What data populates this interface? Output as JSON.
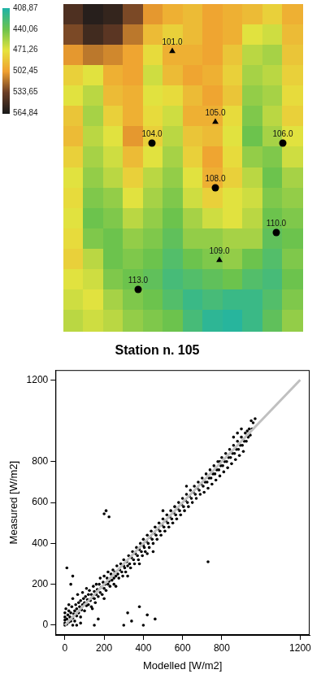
{
  "chart_data": [
    {
      "type": "map",
      "xlim": [
        0,
        294
      ],
      "ylim": [
        0,
        402
      ],
      "tick_labels": false,
      "grid": false,
      "color": "#000000",
      "elevation": {
        "cells": [
          [
            545,
            560,
            555,
            530,
            505,
            495,
            490,
            500,
            495,
            490,
            480,
            495
          ],
          [
            530,
            550,
            540,
            515,
            490,
            480,
            490,
            500,
            495,
            470,
            465,
            490
          ],
          [
            505,
            515,
            510,
            500,
            475,
            495,
            495,
            500,
            485,
            460,
            455,
            485
          ],
          [
            480,
            470,
            495,
            500,
            465,
            490,
            500,
            495,
            480,
            455,
            460,
            480
          ],
          [
            470,
            460,
            490,
            495,
            470,
            475,
            490,
            500,
            485,
            450,
            455,
            475
          ],
          [
            485,
            455,
            480,
            495,
            475,
            465,
            495,
            495,
            475,
            445,
            460,
            480
          ],
          [
            490,
            460,
            470,
            505,
            480,
            460,
            485,
            490,
            470,
            440,
            455,
            470
          ],
          [
            480,
            455,
            465,
            490,
            470,
            455,
            480,
            500,
            475,
            450,
            445,
            465
          ],
          [
            470,
            450,
            460,
            480,
            460,
            450,
            470,
            495,
            480,
            460,
            440,
            455
          ],
          [
            475,
            445,
            450,
            470,
            455,
            445,
            465,
            480,
            470,
            465,
            445,
            450
          ],
          [
            470,
            440,
            445,
            460,
            450,
            440,
            455,
            465,
            470,
            460,
            440,
            445
          ],
          [
            475,
            445,
            440,
            450,
            445,
            435,
            450,
            450,
            455,
            455,
            435,
            440
          ],
          [
            480,
            460,
            440,
            445,
            440,
            430,
            440,
            445,
            450,
            440,
            430,
            445
          ],
          [
            470,
            465,
            445,
            440,
            435,
            425,
            430,
            435,
            440,
            430,
            425,
            440
          ],
          [
            465,
            470,
            455,
            445,
            440,
            430,
            420,
            425,
            420,
            420,
            430,
            445
          ],
          [
            460,
            465,
            460,
            450,
            445,
            440,
            425,
            415,
            412,
            420,
            435,
            450
          ]
        ],
        "color_bar": {
          "range": [
            408.87,
            564.84
          ],
          "ticks": [
            {
              "value": 408.87,
              "label": "408,87"
            },
            {
              "value": 440.06,
              "label": "440,06"
            },
            {
              "value": 471.26,
              "label": "471,26"
            },
            {
              "value": 502.45,
              "label": "502,45"
            },
            {
              "value": 533.65,
              "label": "533,65"
            },
            {
              "value": 564.84,
              "label": "564,84"
            }
          ],
          "colors": [
            "#1fb3a6",
            "#6cc34d",
            "#e6e33e",
            "#f0a030",
            "#6b3d25",
            "#1a1a1a"
          ]
        }
      },
      "stations": [
        {
          "label": "101.0",
          "x": 134,
          "y": 344,
          "marker": "triangle"
        },
        {
          "label": "105.0",
          "x": 187,
          "y": 257,
          "marker": "triangle"
        },
        {
          "label": "104.0",
          "x": 109,
          "y": 231,
          "marker": "circle"
        },
        {
          "label": "106.0",
          "x": 270,
          "y": 231,
          "marker": "circle"
        },
        {
          "label": "108.0",
          "x": 187,
          "y": 176,
          "marker": "circle"
        },
        {
          "label": "110.0",
          "x": 262,
          "y": 121,
          "marker": "circle"
        },
        {
          "label": "109.0",
          "x": 192,
          "y": 87,
          "marker": "triangle"
        },
        {
          "label": "113.0",
          "x": 92,
          "y": 51,
          "marker": "circle"
        }
      ]
    },
    {
      "type": "scatter",
      "title": "Station n. 105",
      "x_label": "Modelled [W/m2]",
      "y_label": "Measured [W/m2]",
      "xlim": [
        -48,
        1248
      ],
      "ylim": [
        -48,
        1248
      ],
      "xticks": [
        0,
        200,
        400,
        600,
        800,
        1200
      ],
      "yticks": [
        0,
        200,
        400,
        600,
        800,
        1200
      ],
      "grid": false,
      "color": "#000000",
      "marker": "circle",
      "identity_line": {
        "x": [
          0,
          1200
        ],
        "y": [
          0,
          1200
        ],
        "color": "#c0c0c0"
      },
      "points": [
        [
          0,
          0
        ],
        [
          0,
          10
        ],
        [
          0,
          25
        ],
        [
          0,
          40
        ],
        [
          0,
          60
        ],
        [
          5,
          80
        ],
        [
          10,
          5
        ],
        [
          10,
          30
        ],
        [
          15,
          50
        ],
        [
          20,
          15
        ],
        [
          20,
          70
        ],
        [
          20,
          100
        ],
        [
          25,
          40
        ],
        [
          30,
          20
        ],
        [
          30,
          60
        ],
        [
          35,
          90
        ],
        [
          40,
          35
        ],
        [
          40,
          130
        ],
        [
          45,
          55
        ],
        [
          50,
          70
        ],
        [
          50,
          20
        ],
        [
          55,
          100
        ],
        [
          60,
          45
        ],
        [
          60,
          80
        ],
        [
          65,
          150
        ],
        [
          70,
          60
        ],
        [
          70,
          110
        ],
        [
          75,
          90
        ],
        [
          80,
          40
        ],
        [
          80,
          120
        ],
        [
          85,
          75
        ],
        [
          90,
          100
        ],
        [
          90,
          160
        ],
        [
          95,
          130
        ],
        [
          100,
          70
        ],
        [
          100,
          110
        ],
        [
          105,
          140
        ],
        [
          110,
          95
        ],
        [
          110,
          180
        ],
        [
          115,
          125
        ],
        [
          120,
          100
        ],
        [
          120,
          150
        ],
        [
          125,
          170
        ],
        [
          130,
          120
        ],
        [
          135,
          90
        ],
        [
          135,
          150
        ],
        [
          140,
          135
        ],
        [
          145,
          190
        ],
        [
          150,
          130
        ],
        [
          150,
          165
        ],
        [
          155,
          110
        ],
        [
          160,
          150
        ],
        [
          160,
          200
        ],
        [
          165,
          175
        ],
        [
          170,
          140
        ],
        [
          175,
          200
        ],
        [
          180,
          160
        ],
        [
          180,
          230
        ],
        [
          185,
          185
        ],
        [
          190,
          150
        ],
        [
          195,
          210
        ],
        [
          200,
          180
        ],
        [
          200,
          240
        ],
        [
          205,
          200
        ],
        [
          210,
          170
        ],
        [
          215,
          230
        ],
        [
          220,
          200
        ],
        [
          220,
          260
        ],
        [
          225,
          215
        ],
        [
          230,
          190
        ],
        [
          235,
          250
        ],
        [
          240,
          220
        ],
        [
          245,
          270
        ],
        [
          250,
          230
        ],
        [
          250,
          200
        ],
        [
          255,
          260
        ],
        [
          260,
          240
        ],
        [
          265,
          290
        ],
        [
          270,
          250
        ],
        [
          275,
          230
        ],
        [
          280,
          270
        ],
        [
          285,
          300
        ],
        [
          290,
          260
        ],
        [
          295,
          240
        ],
        [
          300,
          290
        ],
        [
          300,
          320
        ],
        [
          305,
          280
        ],
        [
          310,
          260
        ],
        [
          315,
          310
        ],
        [
          320,
          290
        ],
        [
          325,
          340
        ],
        [
          330,
          300
        ],
        [
          335,
          280
        ],
        [
          340,
          330
        ],
        [
          345,
          360
        ],
        [
          350,
          320
        ],
        [
          355,
          300
        ],
        [
          360,
          350
        ],
        [
          365,
          380
        ],
        [
          370,
          340
        ],
        [
          375,
          320
        ],
        [
          380,
          370
        ],
        [
          385,
          400
        ],
        [
          390,
          360
        ],
        [
          395,
          340
        ],
        [
          400,
          390
        ],
        [
          400,
          420
        ],
        [
          405,
          380
        ],
        [
          410,
          360
        ],
        [
          415,
          410
        ],
        [
          420,
          440
        ],
        [
          425,
          400
        ],
        [
          430,
          380
        ],
        [
          435,
          430
        ],
        [
          440,
          460
        ],
        [
          445,
          420
        ],
        [
          450,
          400
        ],
        [
          455,
          450
        ],
        [
          460,
          480
        ],
        [
          465,
          440
        ],
        [
          470,
          420
        ],
        [
          475,
          470
        ],
        [
          480,
          500
        ],
        [
          485,
          460
        ],
        [
          490,
          440
        ],
        [
          495,
          490
        ],
        [
          500,
          520
        ],
        [
          505,
          480
        ],
        [
          510,
          460
        ],
        [
          515,
          510
        ],
        [
          520,
          540
        ],
        [
          525,
          500
        ],
        [
          530,
          480
        ],
        [
          535,
          530
        ],
        [
          540,
          560
        ],
        [
          545,
          520
        ],
        [
          550,
          500
        ],
        [
          555,
          550
        ],
        [
          560,
          580
        ],
        [
          565,
          540
        ],
        [
          570,
          520
        ],
        [
          575,
          570
        ],
        [
          580,
          600
        ],
        [
          585,
          560
        ],
        [
          590,
          540
        ],
        [
          595,
          590
        ],
        [
          600,
          620
        ],
        [
          605,
          580
        ],
        [
          610,
          560
        ],
        [
          615,
          610
        ],
        [
          620,
          640
        ],
        [
          625,
          600
        ],
        [
          630,
          580
        ],
        [
          635,
          630
        ],
        [
          640,
          660
        ],
        [
          645,
          620
        ],
        [
          650,
          600
        ],
        [
          655,
          650
        ],
        [
          660,
          680
        ],
        [
          665,
          640
        ],
        [
          670,
          620
        ],
        [
          675,
          670
        ],
        [
          680,
          700
        ],
        [
          685,
          660
        ],
        [
          690,
          640
        ],
        [
          695,
          690
        ],
        [
          700,
          720
        ],
        [
          705,
          680
        ],
        [
          710,
          650
        ],
        [
          715,
          700
        ],
        [
          720,
          740
        ],
        [
          725,
          700
        ],
        [
          730,
          670
        ],
        [
          735,
          720
        ],
        [
          740,
          760
        ],
        [
          745,
          720
        ],
        [
          750,
          690
        ],
        [
          755,
          740
        ],
        [
          760,
          780
        ],
        [
          765,
          740
        ],
        [
          770,
          710
        ],
        [
          775,
          760
        ],
        [
          780,
          800
        ],
        [
          785,
          760
        ],
        [
          790,
          730
        ],
        [
          795,
          780
        ],
        [
          800,
          820
        ],
        [
          805,
          780
        ],
        [
          810,
          750
        ],
        [
          815,
          800
        ],
        [
          820,
          840
        ],
        [
          825,
          800
        ],
        [
          830,
          770
        ],
        [
          835,
          820
        ],
        [
          840,
          860
        ],
        [
          845,
          820
        ],
        [
          850,
          790
        ],
        [
          855,
          840
        ],
        [
          860,
          880
        ],
        [
          865,
          840
        ],
        [
          870,
          810
        ],
        [
          875,
          860
        ],
        [
          880,
          900
        ],
        [
          885,
          860
        ],
        [
          890,
          830
        ],
        [
          895,
          880
        ],
        [
          900,
          920
        ],
        [
          905,
          880
        ],
        [
          910,
          850
        ],
        [
          915,
          900
        ],
        [
          920,
          940
        ],
        [
          925,
          900
        ],
        [
          930,
          950
        ],
        [
          935,
          920
        ],
        [
          940,
          960
        ],
        [
          945,
          930
        ],
        [
          950,
          1000
        ],
        [
          955,
          960
        ],
        [
          960,
          990
        ],
        [
          970,
          1010
        ],
        [
          900,
          960
        ],
        [
          880,
          940
        ],
        [
          860,
          920
        ],
        [
          620,
          680
        ],
        [
          500,
          560
        ],
        [
          450,
          360
        ],
        [
          420,
          350
        ],
        [
          380,
          300
        ],
        [
          320,
          240
        ],
        [
          260,
          190
        ],
        [
          200,
          130
        ],
        [
          140,
          80
        ],
        [
          80,
          10
        ],
        [
          60,
          0
        ],
        [
          40,
          0
        ],
        [
          10,
          280
        ],
        [
          40,
          240
        ],
        [
          30,
          200
        ],
        [
          200,
          545
        ],
        [
          210,
          560
        ],
        [
          225,
          530
        ],
        [
          150,
          0
        ],
        [
          170,
          30
        ],
        [
          300,
          0
        ],
        [
          320,
          60
        ],
        [
          340,
          20
        ],
        [
          380,
          90
        ],
        [
          400,
          0
        ],
        [
          420,
          50
        ],
        [
          460,
          30
        ],
        [
          730,
          310
        ],
        [
          790,
          800
        ]
      ]
    }
  ]
}
